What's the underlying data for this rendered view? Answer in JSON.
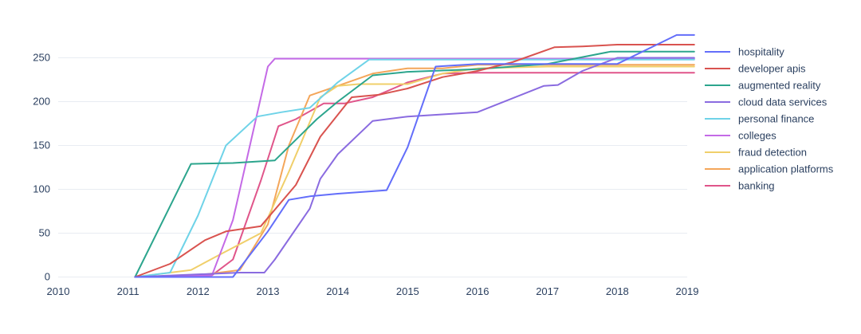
{
  "chart_data": {
    "type": "line",
    "title": "",
    "xlabel": "",
    "ylabel": "",
    "xlim": [
      2010,
      2019
    ],
    "ylim": [
      -5,
      275
    ],
    "x_ticks": [
      2010,
      2011,
      2012,
      2013,
      2014,
      2015,
      2016,
      2017,
      2018,
      2019
    ],
    "x_tick_labels": [
      "2010",
      "2011",
      "2012",
      "2013",
      "2014",
      "2015",
      "2016",
      "2017",
      "2018",
      "2019"
    ],
    "y_ticks": [
      0,
      50,
      100,
      150,
      200,
      250
    ],
    "y_tick_labels": [
      "0",
      "50",
      "100",
      "150",
      "200",
      "250"
    ],
    "grid": true,
    "legend_position": "right",
    "series": [
      {
        "name": "hospitality",
        "color": "#636efa",
        "x": [
          2011.1,
          2012.5,
          2013.0,
          2013.3,
          2013.6,
          2014.0,
          2014.7,
          2015.0,
          2015.4,
          2016.0,
          2017.0,
          2018.0,
          2018.85,
          2019.1
        ],
        "y": [
          0,
          0,
          52,
          88,
          92,
          95,
          99,
          148,
          240,
          243,
          243,
          243,
          276,
          276
        ]
      },
      {
        "name": "developer apis",
        "color": "#d9534f",
        "x": [
          2011.1,
          2011.6,
          2012.1,
          2012.4,
          2012.9,
          2013.4,
          2013.75,
          2014.2,
          2014.6,
          2015.0,
          2015.5,
          2016.0,
          2016.5,
          2017.1,
          2017.5,
          2018.0,
          2019.1
        ],
        "y": [
          0,
          15,
          42,
          52,
          58,
          105,
          160,
          205,
          208,
          215,
          228,
          235,
          245,
          262,
          263,
          265,
          265
        ]
      },
      {
        "name": "augmented reality",
        "color": "#2ca58d",
        "x": [
          2011.1,
          2011.9,
          2012.5,
          2013.1,
          2013.7,
          2014.0,
          2014.5,
          2015.0,
          2016.0,
          2017.0,
          2017.9,
          2019.1
        ],
        "y": [
          0,
          129,
          130,
          133,
          180,
          200,
          230,
          234,
          237,
          243,
          257,
          257
        ]
      },
      {
        "name": "cloud data services",
        "color": "#8a6be0",
        "x": [
          2011.1,
          2012.6,
          2012.95,
          2013.1,
          2013.6,
          2013.75,
          2014.0,
          2014.5,
          2015.0,
          2016.0,
          2016.95,
          2017.15,
          2017.5,
          2018.0,
          2019.1
        ],
        "y": [
          0,
          5,
          5,
          20,
          78,
          112,
          140,
          178,
          183,
          188,
          218,
          219,
          235,
          250,
          250
        ]
      },
      {
        "name": "personal finance",
        "color": "#6fd3e8",
        "x": [
          2011.1,
          2011.6,
          2012.0,
          2012.4,
          2012.85,
          2013.2,
          2013.6,
          2014.0,
          2014.45,
          2015.0,
          2016.0,
          2017.0,
          2018.0,
          2019.1
        ],
        "y": [
          0,
          5,
          70,
          150,
          183,
          188,
          193,
          222,
          248,
          248,
          248,
          248,
          248,
          248
        ]
      },
      {
        "name": "colleges",
        "color": "#c46ae6",
        "x": [
          2011.1,
          2012.2,
          2012.5,
          2012.8,
          2013.0,
          2013.1,
          2014.0,
          2015.0,
          2016.0,
          2017.0,
          2018.0,
          2019.1
        ],
        "y": [
          0,
          2,
          65,
          170,
          240,
          249,
          249,
          249,
          249,
          249,
          249,
          249
        ]
      },
      {
        "name": "fraud detection",
        "color": "#f0cf6a",
        "x": [
          2011.1,
          2011.9,
          2012.3,
          2012.9,
          2013.3,
          2013.75,
          2014.0,
          2014.3,
          2015.0,
          2015.5,
          2016.0,
          2017.0,
          2018.0,
          2019.1
        ],
        "y": [
          0,
          8,
          25,
          50,
          120,
          205,
          218,
          220,
          220,
          232,
          238,
          240,
          240,
          240
        ]
      },
      {
        "name": "application platforms",
        "color": "#f4a65a",
        "x": [
          2011.1,
          2012.0,
          2012.6,
          2013.0,
          2013.3,
          2013.6,
          2014.0,
          2014.5,
          2015.0,
          2015.5,
          2016.0,
          2017.0,
          2018.0,
          2019.1
        ],
        "y": [
          0,
          2,
          8,
          60,
          150,
          207,
          218,
          232,
          238,
          238,
          242,
          242,
          242,
          242
        ]
      },
      {
        "name": "banking",
        "color": "#e0558a",
        "x": [
          2011.1,
          2012.2,
          2012.5,
          2012.9,
          2013.15,
          2013.4,
          2013.8,
          2014.1,
          2014.5,
          2015.0,
          2015.5,
          2016.0,
          2017.0,
          2018.0,
          2019.1
        ],
        "y": [
          0,
          2,
          20,
          110,
          172,
          180,
          198,
          198,
          205,
          222,
          232,
          233,
          233,
          233,
          233
        ]
      }
    ]
  }
}
